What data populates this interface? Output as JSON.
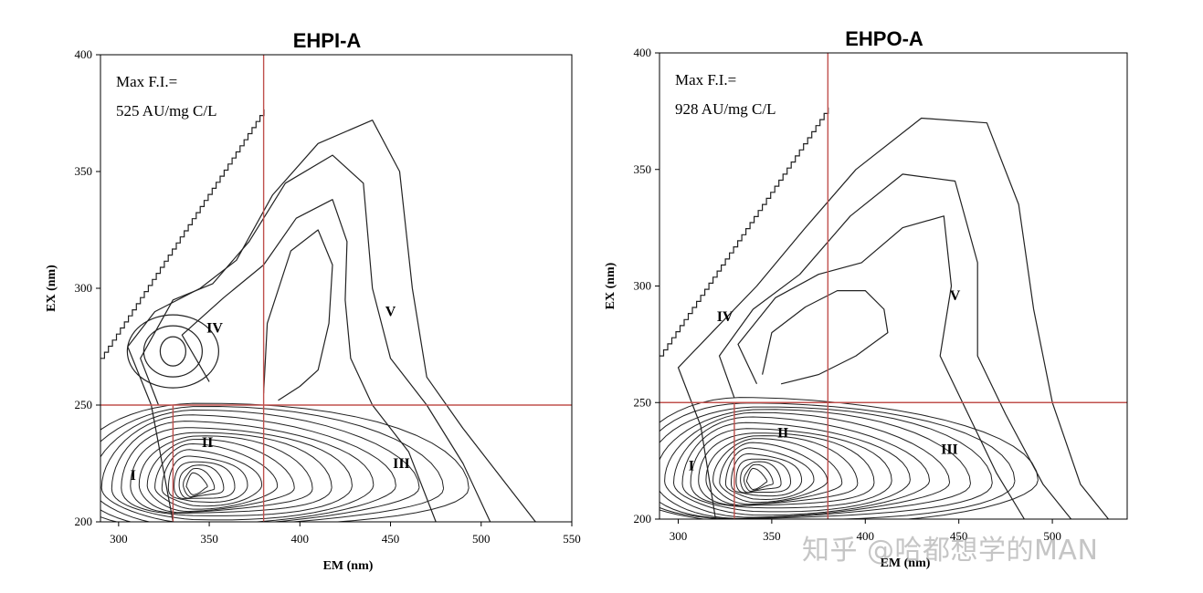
{
  "chart_data": [
    {
      "type": "contour",
      "title": "EHPI-A",
      "xlabel": "EM (nm)",
      "ylabel": "EX (nm)",
      "xlim": [
        290,
        550
      ],
      "ylim": [
        200,
        400
      ],
      "xticks": [
        300,
        350,
        400,
        450,
        500,
        550
      ],
      "yticks": [
        200,
        250,
        300,
        350,
        400
      ],
      "annotation": [
        "Max F.I.=",
        "525 AU/mg C/L"
      ],
      "region_lines": {
        "vertical_full": 380,
        "vertical_short": 330,
        "horizontal": 250
      },
      "regions": [
        {
          "label": "I",
          "x": 308,
          "y": 218
        },
        {
          "label": "II",
          "x": 349,
          "y": 232
        },
        {
          "label": "III",
          "x": 456,
          "y": 223
        },
        {
          "label": "IV",
          "x": 353,
          "y": 281
        },
        {
          "label": "V",
          "x": 450,
          "y": 288
        }
      ],
      "peaks": [
        {
          "x": 341,
          "y": 215,
          "levels": 16
        },
        {
          "x": 330,
          "y": 273,
          "levels": 3
        }
      ]
    },
    {
      "type": "contour",
      "title": "EHPO-A",
      "xlabel": "EM (nm)",
      "ylabel": "EX (nm)",
      "xlim": [
        290,
        540
      ],
      "ylim": [
        200,
        400
      ],
      "xticks": [
        300,
        350,
        400,
        450,
        500
      ],
      "yticks": [
        200,
        250,
        300,
        350,
        400
      ],
      "annotation": [
        "Max F.I.=",
        "928 AU/mg C/L"
      ],
      "region_lines": {
        "vertical_full": 380,
        "vertical_short": 330,
        "horizontal": 250
      },
      "regions": [
        {
          "label": "I",
          "x": 307,
          "y": 221
        },
        {
          "label": "II",
          "x": 356,
          "y": 235
        },
        {
          "label": "III",
          "x": 445,
          "y": 228
        },
        {
          "label": "IV",
          "x": 325,
          "y": 285
        },
        {
          "label": "V",
          "x": 448,
          "y": 294
        }
      ],
      "peaks": [
        {
          "x": 340,
          "y": 216,
          "levels": 18
        }
      ]
    }
  ],
  "watermark": "知乎 @哈都想学的MAN"
}
